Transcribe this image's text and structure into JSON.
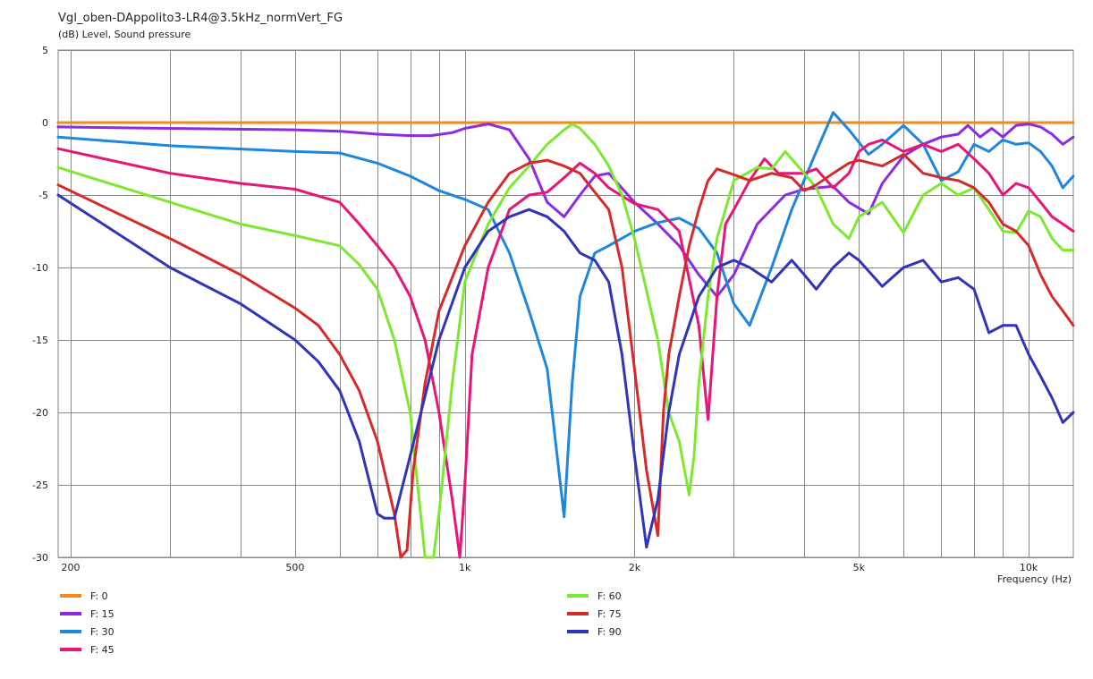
{
  "chart_data": {
    "type": "line",
    "title": "Vgl_oben-DAppolito3-LR4@3.5kHz_normVert_FG",
    "ylabel": "(dB)  Level, Sound pressure",
    "xlabel": "Frequency  (Hz)",
    "x_scale": "log",
    "xlim": [
      190,
      12000
    ],
    "ylim": [
      -30,
      5
    ],
    "x_tick_labels": [
      {
        "value": 200,
        "label": "200"
      },
      {
        "value": 500,
        "label": "500"
      },
      {
        "value": 1000,
        "label": "1k"
      },
      {
        "value": 2000,
        "label": "2k"
      },
      {
        "value": 5000,
        "label": "5k"
      },
      {
        "value": 10000,
        "label": "10k"
      }
    ],
    "x_grid": [
      200,
      300,
      400,
      500,
      600,
      700,
      800,
      900,
      1000,
      2000,
      3000,
      4000,
      5000,
      6000,
      7000,
      8000,
      9000,
      10000
    ],
    "y_ticks": [
      5,
      0,
      -5,
      -10,
      -15,
      -20,
      -25,
      -30
    ],
    "grid": true,
    "legend_position": "bottom",
    "series": [
      {
        "name": "F: 0",
        "color": "#f08a1c",
        "x": [
          190,
          1000,
          12000
        ],
        "y": [
          0,
          0,
          0
        ]
      },
      {
        "name": "F: 15",
        "color": "#8c2be3",
        "x": [
          190,
          300,
          500,
          600,
          700,
          800,
          870,
          950,
          1000,
          1100,
          1200,
          1300,
          1400,
          1500,
          1600,
          1700,
          1800,
          2000,
          2200,
          2400,
          2600,
          2800,
          3000,
          3300,
          3700,
          4000,
          4500,
          4800,
          5200,
          5500,
          6000,
          6500,
          7000,
          7500,
          7800,
          8200,
          8600,
          9000,
          9500,
          10000,
          10500,
          11000,
          11500,
          12000
        ],
        "y": [
          -0.3,
          -0.4,
          -0.5,
          -0.6,
          -0.8,
          -0.9,
          -0.9,
          -0.7,
          -0.4,
          -0.1,
          -0.5,
          -2.5,
          -5.5,
          -6.5,
          -5,
          -3.7,
          -3.5,
          -5.5,
          -7,
          -8.5,
          -10.5,
          -12,
          -10.5,
          -7,
          -5,
          -4.6,
          -4.4,
          -5.5,
          -6.3,
          -4.2,
          -2.3,
          -1.5,
          -1,
          -0.8,
          -0.2,
          -1,
          -0.4,
          -1,
          -0.2,
          -0.1,
          -0.3,
          -0.8,
          -1.5,
          -1
        ]
      },
      {
        "name": "F: 30",
        "color": "#1e86df",
        "x": [
          190,
          300,
          500,
          600,
          700,
          800,
          900,
          1000,
          1100,
          1200,
          1300,
          1400,
          1500,
          1550,
          1600,
          1700,
          1800,
          2000,
          2200,
          2400,
          2600,
          2800,
          3000,
          3200,
          3500,
          3800,
          4200,
          4500,
          4800,
          5200,
          5500,
          6000,
          6500,
          7000,
          7500,
          8000,
          8500,
          9000,
          9500,
          10000,
          10500,
          11000,
          11500,
          12000
        ],
        "y": [
          -1,
          -1.6,
          -2,
          -2.1,
          -2.8,
          -3.7,
          -4.7,
          -5.3,
          -6,
          -9,
          -13,
          -17,
          -27.2,
          -18,
          -12,
          -9,
          -8.5,
          -7.5,
          -6.9,
          -6.6,
          -7.3,
          -9,
          -12.5,
          -14,
          -10,
          -6,
          -2,
          0.7,
          -0.5,
          -2.2,
          -1.5,
          -0.2,
          -1.5,
          -4,
          -3.4,
          -1.5,
          -2,
          -1.2,
          -1.5,
          -1.4,
          -2,
          -3,
          -4.5,
          -3.7
        ]
      },
      {
        "name": "F: 45",
        "color": "#e81578",
        "x": [
          190,
          300,
          400,
          500,
          600,
          650,
          700,
          750,
          800,
          850,
          900,
          950,
          980,
          1000,
          1030,
          1100,
          1200,
          1300,
          1400,
          1500,
          1600,
          1700,
          1800,
          2000,
          2200,
          2400,
          2600,
          2700,
          2800,
          2900,
          3000,
          3200,
          3400,
          3600,
          4000,
          4200,
          4500,
          4800,
          5000,
          5200,
          5500,
          6000,
          6500,
          7000,
          7500,
          8000,
          8500,
          9000,
          9500,
          10000,
          10500,
          11000,
          11500,
          12000
        ],
        "y": [
          -1.8,
          -3.5,
          -4.2,
          -4.6,
          -5.5,
          -7,
          -8.5,
          -10,
          -12,
          -15,
          -20,
          -26,
          -30,
          -25,
          -16,
          -10,
          -6,
          -5,
          -4.8,
          -3.8,
          -2.8,
          -3.5,
          -4.5,
          -5.6,
          -6,
          -7.5,
          -14,
          -20.5,
          -12,
          -7,
          -6,
          -4,
          -2.5,
          -3.5,
          -3.5,
          -3.2,
          -4.5,
          -3.5,
          -2,
          -1.5,
          -1.2,
          -2,
          -1.5,
          -2,
          -1.5,
          -2.5,
          -3.5,
          -5,
          -4.2,
          -4.5,
          -5.5,
          -6.5,
          -7,
          -7.5
        ]
      },
      {
        "name": "F: 60",
        "color": "#7ce830",
        "x": [
          190,
          300,
          400,
          500,
          600,
          650,
          700,
          750,
          800,
          850,
          860,
          880,
          900,
          950,
          1000,
          1100,
          1200,
          1300,
          1400,
          1500,
          1550,
          1600,
          1700,
          1800,
          1900,
          2000,
          2200,
          2300,
          2400,
          2500,
          2550,
          2600,
          2700,
          2800,
          3000,
          3300,
          3500,
          3700,
          4000,
          4200,
          4500,
          4800,
          5000,
          5500,
          6000,
          6500,
          7000,
          7500,
          8000,
          8500,
          9000,
          9500,
          10000,
          10500,
          11000,
          11500,
          12000
        ],
        "y": [
          -3.1,
          -5.5,
          -7,
          -7.8,
          -8.5,
          -9.8,
          -11.5,
          -15,
          -20,
          -30,
          -30,
          -30,
          -27,
          -18,
          -11,
          -7,
          -4.5,
          -3,
          -1.5,
          -0.5,
          -0.1,
          -0.4,
          -1.5,
          -3,
          -5,
          -8,
          -15,
          -20,
          -22,
          -25.7,
          -23,
          -18,
          -12,
          -8,
          -4,
          -3.1,
          -3.2,
          -2,
          -3.5,
          -4.5,
          -7,
          -8,
          -6.5,
          -5.5,
          -7.6,
          -5,
          -4.2,
          -5,
          -4.5,
          -6,
          -7.5,
          -7.6,
          -6.1,
          -6.5,
          -8,
          -8.8,
          -8.8
        ]
      },
      {
        "name": "F: 75",
        "color": "#d62a2a",
        "x": [
          190,
          300,
          400,
          500,
          550,
          600,
          650,
          700,
          750,
          770,
          790,
          810,
          850,
          900,
          1000,
          1100,
          1200,
          1300,
          1400,
          1500,
          1600,
          1700,
          1800,
          1900,
          2000,
          2100,
          2200,
          2250,
          2300,
          2400,
          2500,
          2600,
          2700,
          2800,
          3000,
          3200,
          3500,
          3800,
          4000,
          4200,
          4500,
          4800,
          5000,
          5500,
          6000,
          6500,
          7000,
          7500,
          8000,
          8500,
          9000,
          9500,
          10000,
          10500,
          11000,
          11500,
          12000
        ],
        "y": [
          -4.3,
          -8,
          -10.5,
          -12.8,
          -14,
          -16,
          -18.5,
          -22,
          -27,
          -30,
          -29.5,
          -24,
          -18,
          -13,
          -8.5,
          -5.5,
          -3.5,
          -2.8,
          -2.6,
          -3,
          -3.5,
          -4.8,
          -6,
          -10,
          -17,
          -24,
          -28.5,
          -20,
          -16,
          -12,
          -8.5,
          -6,
          -4,
          -3.2,
          -3.6,
          -4,
          -3.5,
          -3.8,
          -4.7,
          -4.3,
          -3.5,
          -2.8,
          -2.6,
          -3,
          -2.2,
          -3.5,
          -3.8,
          -4,
          -4.5,
          -5.5,
          -7,
          -7.5,
          -8.5,
          -10.5,
          -12,
          -13,
          -14
        ]
      },
      {
        "name": "F: 90",
        "color": "#2f34b8",
        "x": [
          190,
          300,
          400,
          500,
          550,
          600,
          650,
          700,
          720,
          750,
          800,
          900,
          1000,
          1100,
          1200,
          1300,
          1400,
          1500,
          1600,
          1700,
          1800,
          1900,
          2000,
          2100,
          2200,
          2300,
          2400,
          2600,
          2800,
          3000,
          3200,
          3500,
          3800,
          4000,
          4200,
          4500,
          4800,
          5000,
          5500,
          6000,
          6500,
          7000,
          7500,
          8000,
          8500,
          9000,
          9500,
          10000,
          10500,
          11000,
          11500,
          12000
        ],
        "y": [
          -5,
          -10,
          -12.5,
          -15,
          -16.5,
          -18.5,
          -22,
          -27,
          -27.3,
          -27.3,
          -23,
          -15,
          -10,
          -7.5,
          -6.5,
          -6,
          -6.5,
          -7.5,
          -9,
          -9.5,
          -11,
          -16,
          -23,
          -29.3,
          -26,
          -20,
          -16,
          -12,
          -10,
          -9.5,
          -10,
          -11,
          -9.5,
          -10.5,
          -11.5,
          -10,
          -9,
          -9.5,
          -11.3,
          -10,
          -9.5,
          -11,
          -10.7,
          -11.5,
          -14.5,
          -14,
          -14,
          -16,
          -17.5,
          -19,
          -20.7,
          -20
        ]
      }
    ]
  }
}
